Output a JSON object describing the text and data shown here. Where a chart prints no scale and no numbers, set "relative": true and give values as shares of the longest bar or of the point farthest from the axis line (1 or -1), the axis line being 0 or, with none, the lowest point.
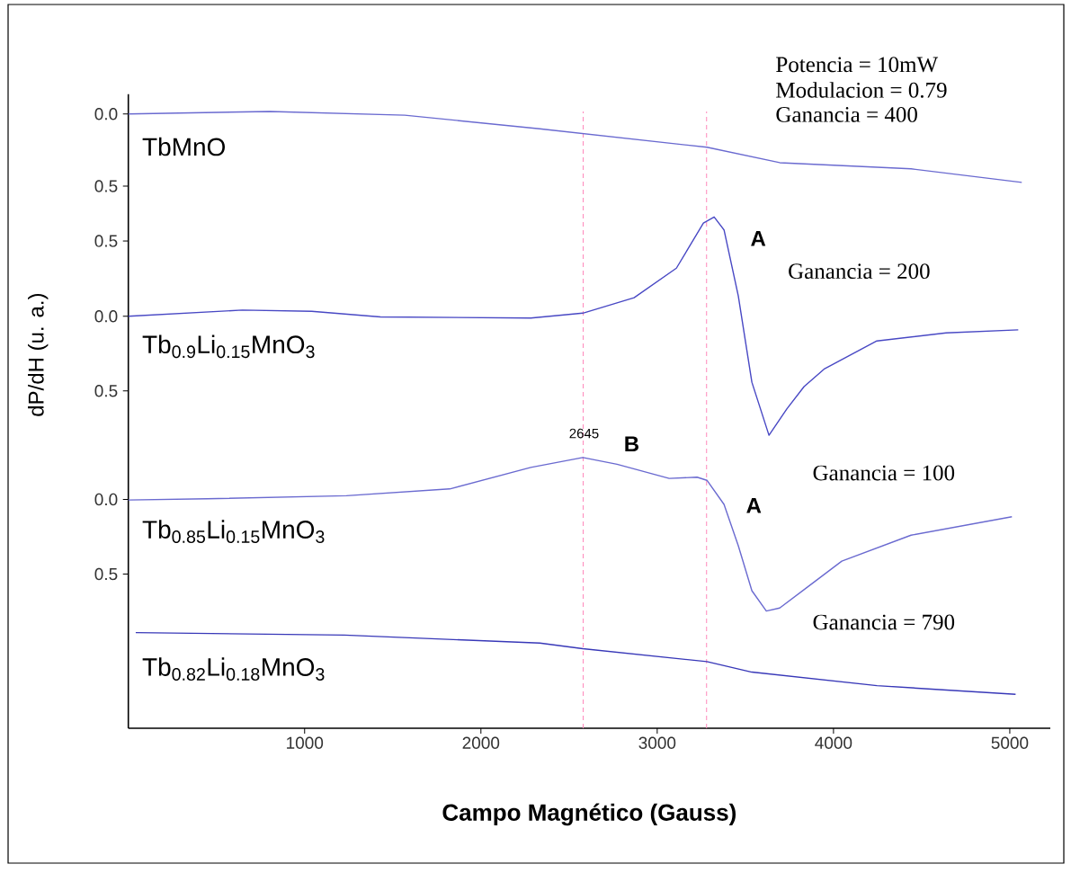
{
  "chart_data": {
    "type": "line",
    "xlabel": "Campo Magnético (Gauss)",
    "ylabel": "dP/dH (u. a.)",
    "xlim": [
      0,
      5230
    ],
    "xticks": [
      1000,
      2000,
      3000,
      4000,
      5000
    ],
    "relative": true,
    "grid": false,
    "marker": "none",
    "line_style": "solid",
    "series": [
      {
        "name": "TbMnO",
        "color": "#6a6ad0",
        "x": [
          0,
          803,
          1568,
          2333,
          3282,
          3695,
          4440,
          5068
        ],
        "values": [
          0.996,
          1,
          0.994,
          0.972,
          0.942,
          0.917,
          0.907,
          0.885
        ]
      },
      {
        "name": "Tb$_{0.9}$Li$_{0.15}$MnO$_{3}$",
        "color": "#4848c4",
        "x": [
          0,
          647,
          1040,
          1430,
          2283,
          2578,
          2869,
          3109,
          3262,
          3323,
          3379,
          3460,
          3537,
          3634,
          3736,
          3833,
          3950,
          4246,
          4639,
          5048
        ],
        "values": [
          0.668,
          0.678,
          0.676,
          0.667,
          0.665,
          0.673,
          0.698,
          0.746,
          0.819,
          0.829,
          0.808,
          0.701,
          0.561,
          0.475,
          0.518,
          0.554,
          0.583,
          0.628,
          0.641,
          0.646
        ]
      },
      {
        "name": "Tb$_{0.85}$Li$_{0.15}$MnO$_{3}$",
        "color": "#6a6ad0",
        "x": [
          0,
          446,
          1237,
          1823,
          2283,
          2578,
          2772,
          3068,
          3226,
          3282,
          3379,
          3460,
          3537,
          3619,
          3695,
          3853,
          4047,
          4440,
          5012
        ],
        "values": [
          0.37,
          0.372,
          0.377,
          0.388,
          0.423,
          0.439,
          0.428,
          0.405,
          0.407,
          0.402,
          0.363,
          0.296,
          0.223,
          0.19,
          0.195,
          0.229,
          0.271,
          0.313,
          0.343
        ]
      },
      {
        "name": "Tb$_{0.82}$Li$_{0.18}$MnO$_{3}$",
        "color": "#3838b8",
        "x": [
          42,
          1226,
          2334,
          2578,
          3282,
          3537,
          4247,
          5033
        ],
        "values": [
          0.155,
          0.151,
          0.138,
          0.129,
          0.108,
          0.091,
          0.069,
          0.055
        ]
      }
    ],
    "ref_lines": [
      {
        "axis": "x",
        "value": 2580,
        "color": "#ff88bb",
        "line_style": "dashed"
      },
      {
        "axis": "x",
        "value": 3280,
        "color": "#ff88bb",
        "line_style": "dashed"
      }
    ],
    "annotations": [
      "0.0",
      "0.5",
      "0.5",
      "0.0",
      "0.5",
      "0.0",
      "0.5",
      "Potencia = 10mW",
      "Modulacion = 0.79",
      "Ganancia = 400",
      "A",
      "Ganancia = 200",
      "2645",
      "B",
      "Ganancia = 100",
      "A",
      "Ganancia = 790"
    ]
  }
}
